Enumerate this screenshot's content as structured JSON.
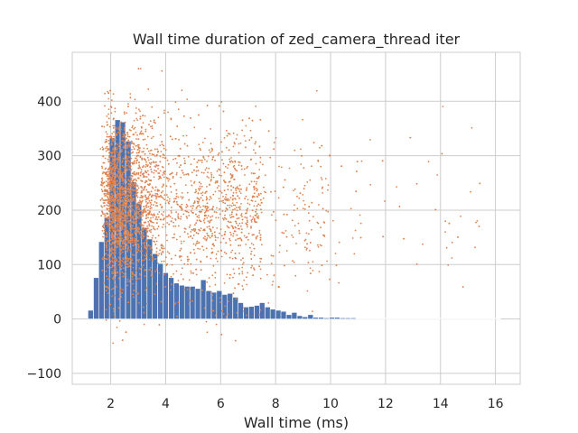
{
  "chart_data": {
    "type": "bar",
    "title": "Wall time duration of zed_camera_thread iter",
    "xlabel": "Wall time (ms)",
    "ylabel": "",
    "xlim": [
      0.6,
      16.9
    ],
    "ylim": [
      -120,
      490
    ],
    "xticks": [
      2,
      4,
      6,
      8,
      10,
      12,
      14,
      16
    ],
    "yticks": [
      -100,
      0,
      100,
      200,
      300,
      400
    ],
    "grid": true,
    "colors": {
      "bars": "#4c72b0",
      "points": "#dd8452",
      "grid": "#cccccc",
      "frame": "#cccccc"
    },
    "series": [
      {
        "name": "",
        "type": "bar",
        "bin_width": 0.195,
        "x": [
          1.27,
          1.47,
          1.66,
          1.86,
          2.05,
          2.25,
          2.44,
          2.64,
          2.83,
          3.03,
          3.22,
          3.42,
          3.61,
          3.81,
          4.0,
          4.2,
          4.39,
          4.59,
          4.78,
          4.98,
          5.17,
          5.37,
          5.56,
          5.76,
          5.95,
          6.15,
          6.34,
          6.54,
          6.73,
          6.93,
          7.12,
          7.32,
          7.51,
          7.71,
          7.9,
          8.1,
          8.29,
          8.49,
          8.68,
          8.88,
          9.07,
          9.27,
          9.46,
          9.66,
          9.85,
          10.05,
          10.24,
          10.44,
          10.63,
          10.83,
          11.02,
          11.22,
          11.41,
          11.61,
          11.8,
          12.0,
          12.19,
          12.39,
          12.58,
          12.78,
          12.97,
          13.17,
          13.36,
          13.56,
          13.75,
          13.95,
          14.14,
          14.34,
          14.53,
          14.73,
          14.92,
          15.12,
          15.31,
          15.51,
          15.7,
          15.9,
          16.09
        ],
        "values": [
          16,
          76,
          142,
          187,
          333,
          366,
          362,
          327,
          252,
          212,
          168,
          147,
          120,
          102,
          85,
          76,
          66,
          62,
          60,
          60,
          56,
          72,
          52,
          49,
          52,
          45,
          47,
          40,
          30,
          22,
          23,
          25,
          30,
          22,
          18,
          16,
          14,
          8,
          12,
          6,
          4,
          8,
          3,
          3,
          2,
          3,
          3,
          2,
          2,
          2,
          1,
          1,
          1,
          1,
          1,
          1,
          1,
          1,
          1,
          0,
          1,
          0,
          1,
          0,
          0,
          1,
          0,
          0,
          0,
          0,
          0,
          1,
          0,
          0,
          0,
          0,
          1
        ]
      },
      {
        "name": "",
        "type": "scatter",
        "point_count": 4200,
        "note_x_range": [
          1.3,
          16.2
        ],
        "note_y_range": [
          -90,
          460
        ]
      }
    ]
  }
}
